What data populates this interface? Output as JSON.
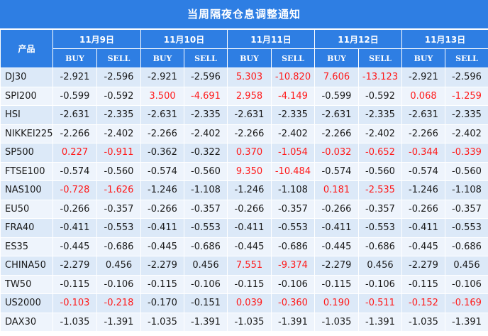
{
  "title": "当周隔夜仓息调整通知",
  "product_header": "产品",
  "dates": [
    "11月9日",
    "11月10日",
    "11月11日",
    "11月12日",
    "11月13日"
  ],
  "buy_label": "BUY",
  "sell_label": "SELL",
  "colors": {
    "header_bg": "#2e7ee3",
    "row_odd": "#dce9f8",
    "row_even": "#eef4fc",
    "highlight": "#ff1a1a"
  },
  "rows": [
    {
      "name": "DJ30",
      "values": [
        "-2.921",
        "-2.596",
        "-2.921",
        "-2.596",
        "5.303",
        "-10.820",
        "7.606",
        "-13.123",
        "-2.921",
        "-2.596"
      ],
      "highlight": [
        false,
        false,
        false,
        false,
        true,
        true,
        true,
        true,
        false,
        false
      ]
    },
    {
      "name": "SPI200",
      "values": [
        "-0.599",
        "-0.592",
        "3.500",
        "-4.691",
        "2.958",
        "-4.149",
        "-0.599",
        "-0.592",
        "0.068",
        "-1.259"
      ],
      "highlight": [
        false,
        false,
        true,
        true,
        true,
        true,
        false,
        false,
        true,
        true
      ]
    },
    {
      "name": "HSI",
      "values": [
        "-2.631",
        "-2.335",
        "-2.631",
        "-2.335",
        "-2.631",
        "-2.335",
        "-2.631",
        "-2.335",
        "-2.631",
        "-2.335"
      ],
      "highlight": [
        false,
        false,
        false,
        false,
        false,
        false,
        false,
        false,
        false,
        false
      ]
    },
    {
      "name": "NIKKEI225",
      "values": [
        "-2.266",
        "-2.402",
        "-2.266",
        "-2.402",
        "-2.266",
        "-2.402",
        "-2.266",
        "-2.402",
        "-2.266",
        "-2.402"
      ],
      "highlight": [
        false,
        false,
        false,
        false,
        false,
        false,
        false,
        false,
        false,
        false
      ]
    },
    {
      "name": "SP500",
      "values": [
        "0.227",
        "-0.911",
        "-0.362",
        "-0.322",
        "0.370",
        "-1.054",
        "-0.032",
        "-0.652",
        "-0.344",
        "-0.339"
      ],
      "highlight": [
        true,
        true,
        false,
        false,
        true,
        true,
        true,
        true,
        true,
        true
      ]
    },
    {
      "name": "FTSE100",
      "values": [
        "-0.574",
        "-0.560",
        "-0.574",
        "-0.560",
        "9.350",
        "-10.484",
        "-0.574",
        "-0.560",
        "-0.574",
        "-0.560"
      ],
      "highlight": [
        false,
        false,
        false,
        false,
        true,
        true,
        false,
        false,
        false,
        false
      ]
    },
    {
      "name": "NAS100",
      "values": [
        "-0.728",
        "-1.626",
        "-1.246",
        "-1.108",
        "-1.246",
        "-1.108",
        "0.181",
        "-2.535",
        "-1.246",
        "-1.108"
      ],
      "highlight": [
        true,
        true,
        false,
        false,
        false,
        false,
        true,
        true,
        false,
        false
      ]
    },
    {
      "name": "EU50",
      "values": [
        "-0.266",
        "-0.357",
        "-0.266",
        "-0.357",
        "-0.266",
        "-0.357",
        "-0.266",
        "-0.357",
        "-0.266",
        "-0.357"
      ],
      "highlight": [
        false,
        false,
        false,
        false,
        false,
        false,
        false,
        false,
        false,
        false
      ]
    },
    {
      "name": "FRA40",
      "values": [
        "-0.411",
        "-0.553",
        "-0.411",
        "-0.553",
        "-0.411",
        "-0.553",
        "-0.411",
        "-0.553",
        "-0.411",
        "-0.553"
      ],
      "highlight": [
        false,
        false,
        false,
        false,
        false,
        false,
        false,
        false,
        false,
        false
      ]
    },
    {
      "name": "ES35",
      "values": [
        "-0.445",
        "-0.686",
        "-0.445",
        "-0.686",
        "-0.445",
        "-0.686",
        "-0.445",
        "-0.686",
        "-0.445",
        "-0.686"
      ],
      "highlight": [
        false,
        false,
        false,
        false,
        false,
        false,
        false,
        false,
        false,
        false
      ]
    },
    {
      "name": "CHINA50",
      "values": [
        "-2.279",
        "0.456",
        "-2.279",
        "0.456",
        "7.551",
        "-9.374",
        "-2.279",
        "0.456",
        "-2.279",
        "0.456"
      ],
      "highlight": [
        false,
        false,
        false,
        false,
        true,
        true,
        false,
        false,
        false,
        false
      ]
    },
    {
      "name": "TW50",
      "values": [
        "-0.115",
        "-0.106",
        "-0.115",
        "-0.106",
        "-0.115",
        "-0.106",
        "-0.115",
        "-0.106",
        "-0.115",
        "-0.106"
      ],
      "highlight": [
        false,
        false,
        false,
        false,
        false,
        false,
        false,
        false,
        false,
        false
      ]
    },
    {
      "name": "US2000",
      "values": [
        "-0.103",
        "-0.218",
        "-0.170",
        "-0.151",
        "0.039",
        "-0.360",
        "0.190",
        "-0.511",
        "-0.152",
        "-0.169"
      ],
      "highlight": [
        true,
        true,
        false,
        false,
        true,
        true,
        true,
        true,
        true,
        true
      ]
    },
    {
      "name": "DAX30",
      "values": [
        "-1.035",
        "-1.391",
        "-1.035",
        "-1.391",
        "-1.035",
        "-1.391",
        "-1.035",
        "-1.391",
        "-1.035",
        "-1.391"
      ],
      "highlight": [
        false,
        false,
        false,
        false,
        false,
        false,
        false,
        false,
        false,
        false
      ]
    }
  ]
}
